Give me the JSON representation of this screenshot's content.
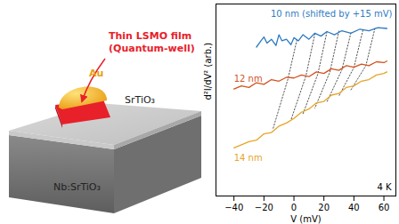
{
  "schematic": {
    "film": [
      "Thin LSMO film",
      "(Quantum-well)"
    ],
    "electrode": "Au",
    "barrier": "SrTiO₃",
    "substrate": "Nb:SrTiO₃"
  },
  "chart_data": {
    "type": "line",
    "x_label": "V (mV)",
    "y_label": "d²I/dV² (arb.)",
    "xlim": [
      -52,
      68
    ],
    "xticks": [
      -40,
      -20,
      0,
      20,
      40,
      60
    ],
    "ylim": [
      0,
      11
    ],
    "tick_labels": "x",
    "annotations": [
      "4 K"
    ],
    "series": [
      {
        "name": "10 nm (shifted by +15 mV)",
        "color": "#2e7bc4",
        "x": [
          -25,
          -22,
          -20,
          -18,
          -15,
          -12,
          -10,
          -8,
          -5,
          -2,
          0,
          3,
          6,
          10,
          14,
          18,
          22,
          27,
          32,
          38,
          44,
          50,
          56,
          62
        ],
        "values": [
          8.53,
          8.89,
          9.11,
          8.76,
          8.98,
          8.62,
          9.24,
          8.89,
          8.98,
          8.67,
          9.07,
          8.89,
          9.24,
          8.98,
          9.33,
          9.16,
          9.42,
          9.24,
          9.47,
          9.33,
          9.56,
          9.47,
          9.64,
          9.6
        ]
      },
      {
        "name": "12 nm",
        "color": "#d4521f",
        "x": [
          -40,
          -35,
          -30,
          -25,
          -20,
          -15,
          -10,
          -5,
          0,
          5,
          10,
          15,
          20,
          25,
          30,
          35,
          40,
          45,
          50,
          55,
          60,
          62
        ],
        "values": [
          6.13,
          6.31,
          6.22,
          6.49,
          6.4,
          6.67,
          6.58,
          6.8,
          6.76,
          6.93,
          6.84,
          7.11,
          7.02,
          7.29,
          7.2,
          7.47,
          7.38,
          7.56,
          7.47,
          7.69,
          7.64,
          7.73
        ]
      },
      {
        "name": "14 nm",
        "color": "#e6a526",
        "x": [
          -40,
          -35,
          -30,
          -25,
          -20,
          -15,
          -10,
          -5,
          0,
          5,
          10,
          15,
          20,
          25,
          30,
          35,
          40,
          45,
          50,
          55,
          60,
          62
        ],
        "values": [
          2.76,
          2.93,
          3.11,
          3.2,
          3.56,
          3.64,
          4.0,
          4.18,
          4.44,
          4.8,
          4.98,
          5.33,
          5.42,
          5.78,
          5.87,
          6.22,
          6.31,
          6.58,
          6.67,
          6.93,
          7.02,
          7.11
        ]
      }
    ],
    "guides": {
      "color": "#555555",
      "line_style": "dotted",
      "lines": [
        {
          "x": [
            2,
            -4,
            -14
          ],
          "values": [
            8.95,
            6.7,
            3.84
          ]
        },
        {
          "x": [
            14,
            8,
            -2
          ],
          "values": [
            9.3,
            6.88,
            4.35
          ]
        },
        {
          "x": [
            22,
            16,
            6
          ],
          "values": [
            9.4,
            7.0,
            4.7
          ]
        },
        {
          "x": [
            30,
            24,
            14
          ],
          "values": [
            9.45,
            7.11,
            5.04
          ]
        },
        {
          "x": [
            38,
            32,
            22
          ],
          "values": [
            9.35,
            7.23,
            5.39
          ]
        },
        {
          "x": [
            46,
            40,
            30
          ],
          "values": [
            9.5,
            7.36,
            5.73
          ]
        },
        {
          "x": [
            54,
            48,
            38
          ],
          "values": [
            9.6,
            7.47,
            6.08
          ]
        }
      ]
    }
  }
}
